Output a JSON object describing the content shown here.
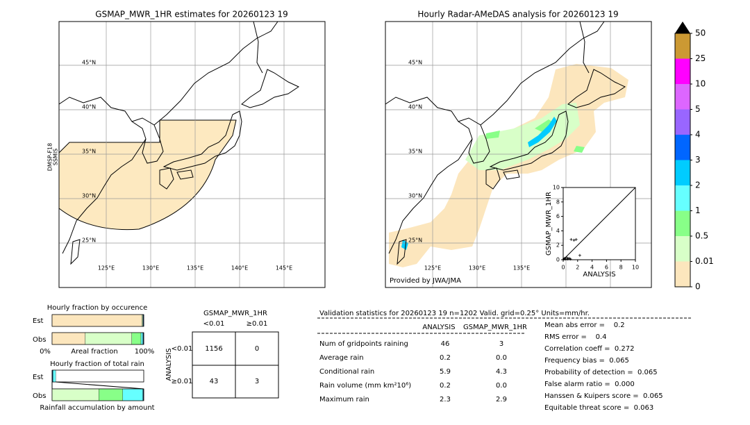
{
  "left_map": {
    "title": "GSMAP_MWR_1HR estimates for 20260123 19",
    "side_label": [
      "DMSP-F18",
      "SSMIS"
    ],
    "lat_labels": [
      {
        "value": 45,
        "label": "45°N"
      },
      {
        "value": 40,
        "label": "40°N"
      },
      {
        "value": 35,
        "label": "35°N"
      },
      {
        "value": 30,
        "label": "30°N"
      },
      {
        "value": 25,
        "label": "25°N"
      }
    ],
    "lon_labels": [
      {
        "value": 125,
        "label": "125°E"
      },
      {
        "value": 130,
        "label": "130°E"
      },
      {
        "value": 135,
        "label": "135°E"
      },
      {
        "value": 140,
        "label": "140°E"
      },
      {
        "value": 145,
        "label": "145°E"
      }
    ]
  },
  "right_map": {
    "title": "Hourly Radar-AMeDAS analysis for 20260123 19",
    "lat_labels": [
      {
        "value": 45,
        "label": "45°N"
      },
      {
        "value": 40,
        "label": "40°N"
      },
      {
        "value": 35,
        "label": "35°N"
      },
      {
        "value": 30,
        "label": "30°N"
      },
      {
        "value": 25,
        "label": "25°N"
      }
    ],
    "lon_labels": [
      {
        "value": 125,
        "label": "125°E"
      },
      {
        "value": 130,
        "label": "130°E"
      },
      {
        "value": 135,
        "label": "135°E"
      }
    ],
    "credit": "Provided by JWA/JMA"
  },
  "scatter": {
    "type": "scatter",
    "xlabel": "ANALYSIS",
    "ylabel": "GSMAP_MWR_1HR",
    "xlim": [
      0,
      10
    ],
    "ylim": [
      0,
      10
    ],
    "xticks": [
      0,
      2,
      4,
      6,
      8,
      10
    ],
    "yticks": [
      0,
      2,
      4,
      6,
      8,
      10
    ],
    "x": [
      0.1,
      0.2,
      0.3,
      0.5,
      0.6,
      0.8,
      1.0,
      1.1,
      1.5,
      1.8,
      2.3
    ],
    "y": [
      0.1,
      0.2,
      0.1,
      0.3,
      0.1,
      0.2,
      0.1,
      2.8,
      2.7,
      2.8,
      0.6
    ]
  },
  "colorbar": {
    "ticks": [
      0,
      0.01,
      0.5,
      1,
      2,
      3,
      4,
      5,
      10,
      25,
      50
    ],
    "colors": [
      "#fce6bd",
      "#d8ffc8",
      "#88ff88",
      "#66ffff",
      "#00ccff",
      "#0066ff",
      "#9966ff",
      "#dd66ff",
      "#ff00ff",
      "#cc9933"
    ],
    "extend_color": "#000000"
  },
  "occurrence": {
    "title": "Hourly fraction by occurence",
    "rows": [
      "Est",
      "Obs"
    ],
    "xlabel": "Areal fraction",
    "xmin_label": "0%",
    "xmax_label": "100%",
    "series": [
      [
        {
          "color": "#fce6bd",
          "value": 98
        },
        {
          "color": "#d8ffc8",
          "value": 1
        },
        {
          "color": "#0a2a50",
          "value": 1
        }
      ],
      [
        {
          "color": "#fce6bd",
          "value": 36
        },
        {
          "color": "#d8ffc8",
          "value": 51
        },
        {
          "color": "#88ff88",
          "value": 10
        },
        {
          "color": "#66ffff",
          "value": 2
        },
        {
          "color": "#0a2a50",
          "value": 1
        }
      ]
    ]
  },
  "total_rain": {
    "title": "Hourly fraction of total rain",
    "rows": [
      "Est",
      "Obs"
    ],
    "xlabel": "Rainfall accumulation by amount",
    "series": [
      [
        {
          "color": "#0a2a50",
          "value": 1
        },
        {
          "color": "#66ffff",
          "value": 3
        }
      ],
      [
        {
          "color": "#d8ffc8",
          "value": 51
        },
        {
          "color": "#88ff88",
          "value": 26
        },
        {
          "color": "#66ffff",
          "value": 22
        },
        {
          "color": "#0a2a50",
          "value": 1
        }
      ]
    ]
  },
  "contingency": {
    "title": "GSMAP_MWR_1HR",
    "col_headers": [
      "<0.01",
      "≥0.01"
    ],
    "row_title": "ANALYSIS",
    "row_headers": [
      "<0.01",
      "≥0.01"
    ],
    "cells": [
      [
        "1156",
        "0"
      ],
      [
        "43",
        "3"
      ]
    ]
  },
  "stats": {
    "header": "Validation statistics for 20260123 19  n=1202 Valid. grid=0.25° Units=mm/hr.",
    "col_headers": [
      "ANALYSIS",
      "GSMAP_MWR_1HR"
    ],
    "rows": [
      {
        "label": "Num of gridpoints raining",
        "values": [
          "46",
          "3"
        ]
      },
      {
        "label": "Average rain",
        "values": [
          "0.2",
          "0.0"
        ]
      },
      {
        "label": "Conditional rain",
        "values": [
          "5.9",
          "4.3"
        ]
      },
      {
        "label": "Rain volume (mm km²10⁶)",
        "values": [
          "0.2",
          "0.0"
        ]
      },
      {
        "label": "Maximum rain",
        "values": [
          "2.3",
          "2.9"
        ]
      }
    ],
    "scores": [
      "Mean abs error =    0.2",
      "RMS error =    0.4",
      "Correlation coeff =  0.272",
      "Frequency bias =  0.065",
      "Probability of detection =  0.065",
      "False alarm ratio =  0.000",
      "Hanssen & Kuipers score =  0.065",
      "Equitable threat score =  0.063"
    ]
  }
}
